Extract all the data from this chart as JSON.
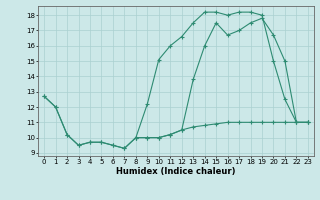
{
  "x": [
    0,
    1,
    2,
    3,
    4,
    5,
    6,
    7,
    8,
    9,
    10,
    11,
    12,
    13,
    14,
    15,
    16,
    17,
    18,
    19,
    20,
    21,
    22,
    23
  ],
  "line1": [
    12.7,
    12.0,
    10.2,
    9.5,
    9.7,
    9.7,
    9.5,
    9.3,
    10.0,
    12.2,
    15.1,
    16.0,
    16.6,
    17.5,
    18.2,
    18.2,
    18.0,
    18.2,
    18.2,
    18.0,
    15.0,
    12.5,
    11.0,
    11.0
  ],
  "line2": [
    12.7,
    12.0,
    10.2,
    9.5,
    9.7,
    9.7,
    9.5,
    9.3,
    10.0,
    10.0,
    10.0,
    10.2,
    10.5,
    13.8,
    16.0,
    17.5,
    16.7,
    17.0,
    17.5,
    17.8,
    16.7,
    15.0,
    11.0,
    11.0
  ],
  "line3": [
    null,
    null,
    null,
    null,
    null,
    null,
    null,
    null,
    10.0,
    10.0,
    10.0,
    10.2,
    10.5,
    10.7,
    10.8,
    10.9,
    11.0,
    11.0,
    11.0,
    11.0,
    11.0,
    11.0,
    11.0,
    11.0
  ],
  "color": "#2e8b72",
  "bg_color": "#cce8e8",
  "grid_color": "#aad0d0",
  "ylabel_ticks": [
    9,
    10,
    11,
    12,
    13,
    14,
    15,
    16,
    17,
    18
  ],
  "xlabel": "Humidex (Indice chaleur)",
  "ylim": [
    8.8,
    18.6
  ],
  "xlim": [
    -0.5,
    23.5
  ],
  "marker": "+",
  "linewidth": 0.8,
  "markersize": 3,
  "tick_fontsize": 5,
  "xlabel_fontsize": 6
}
